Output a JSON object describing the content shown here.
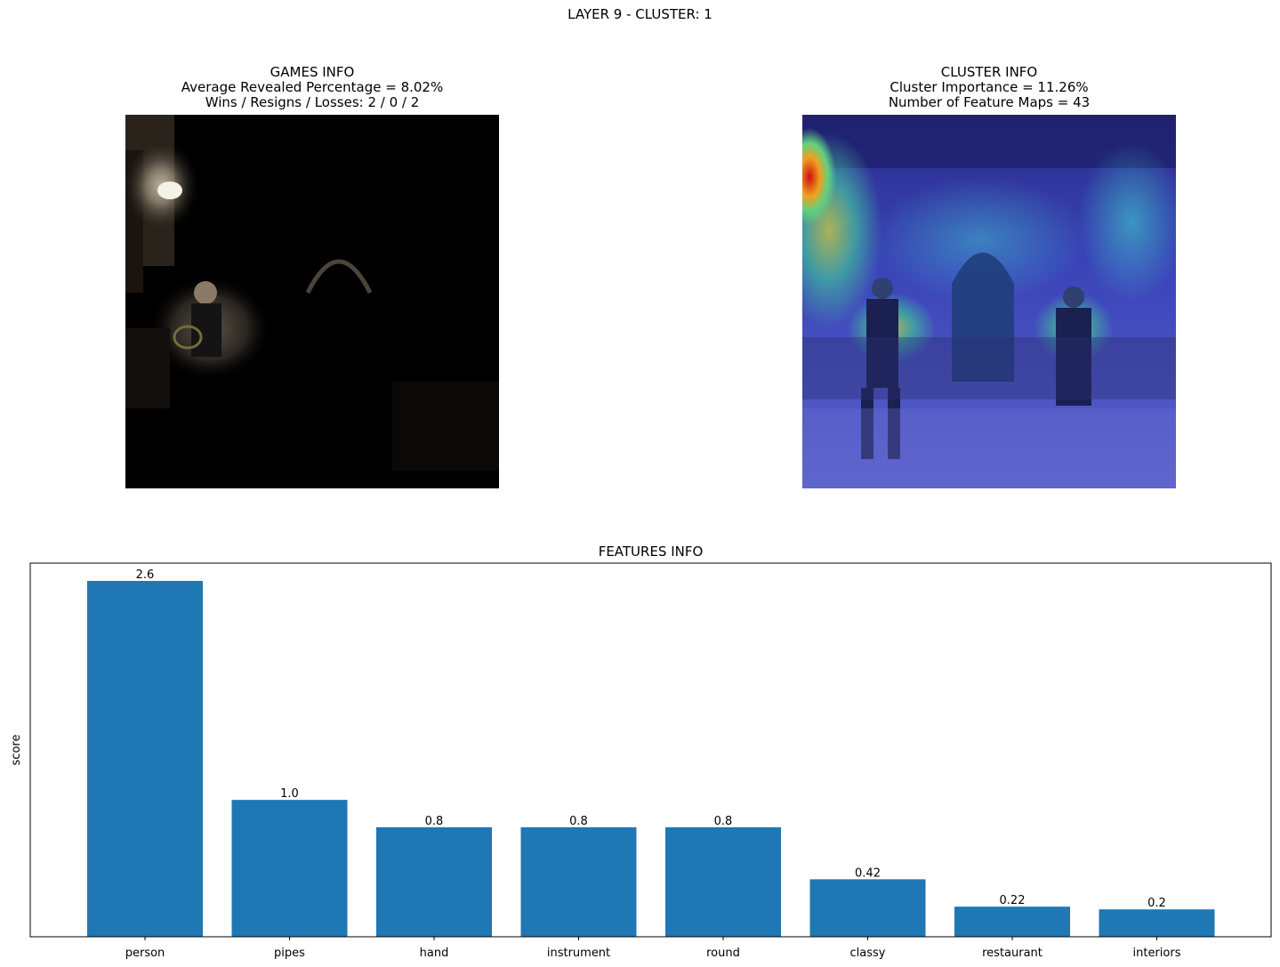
{
  "suptitle": "LAYER 9 - CLUSTER: 1",
  "games_info": {
    "title": "GAMES INFO",
    "line1": "Average Revealed Percentage = 8.02%",
    "line2": "Wins / Resigns / Losses: 2 / 0 / 2"
  },
  "cluster_info": {
    "title": "CLUSTER INFO",
    "line1": "Cluster Importance = 11.26%",
    "line2": "Number of Feature Maps = 43"
  },
  "chart_data": {
    "type": "bar",
    "title": "FEATURES INFO",
    "xlabel": "",
    "ylabel": "score",
    "categories": [
      "person",
      "pipes",
      "hand",
      "instrument",
      "round",
      "classy",
      "restaurant",
      "interiors"
    ],
    "values": [
      2.6,
      1.0,
      0.8,
      0.8,
      0.8,
      0.42,
      0.22,
      0.2
    ],
    "value_labels": [
      "2.6",
      "1.0",
      "0.8",
      "0.8",
      "0.8",
      "0.42",
      "0.22",
      "0.2"
    ],
    "ylim": [
      0,
      2.73
    ],
    "bar_color": "#1f77b4",
    "grid": false,
    "y_ticks_shown": false
  },
  "images": {
    "left": "masked-concert-hall-photo",
    "right": "heatmap-overlay-concert-hall-photo"
  }
}
